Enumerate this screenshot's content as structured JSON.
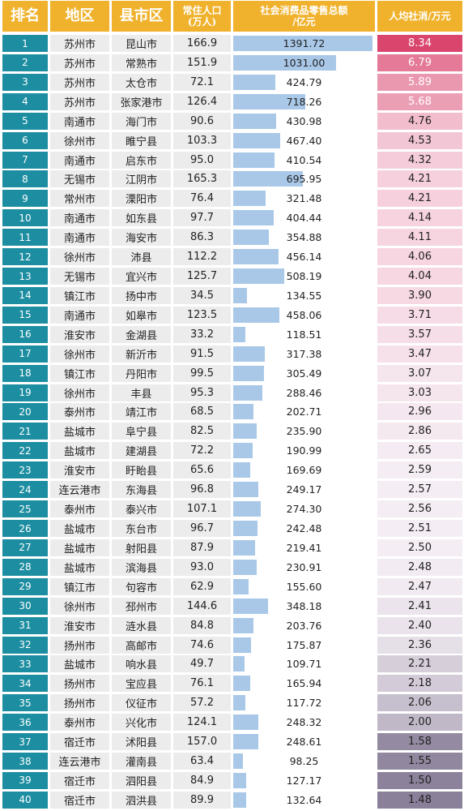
{
  "chart_data": {
    "type": "table",
    "columns": [
      "排名",
      "地区",
      "县市区",
      "常住人口\n(万人)",
      "社会消费品零售总额\n/亿元",
      "人均社消/万元"
    ],
    "rows": [
      {
        "rank": "1",
        "region": "苏州市",
        "county": "昆山市",
        "population": "166.9",
        "sales": "1391.72",
        "per_capita": "8.34"
      },
      {
        "rank": "2",
        "region": "苏州市",
        "county": "常熟市",
        "population": "151.9",
        "sales": "1031.00",
        "per_capita": "6.79"
      },
      {
        "rank": "3",
        "region": "苏州市",
        "county": "太仓市",
        "population": "72.1",
        "sales": "424.79",
        "per_capita": "5.89"
      },
      {
        "rank": "4",
        "region": "苏州市",
        "county": "张家港市",
        "population": "126.4",
        "sales": "718.26",
        "per_capita": "5.68"
      },
      {
        "rank": "5",
        "region": "南通市",
        "county": "海门市",
        "population": "90.6",
        "sales": "430.98",
        "per_capita": "4.76"
      },
      {
        "rank": "6",
        "region": "徐州市",
        "county": "睢宁县",
        "population": "103.3",
        "sales": "467.40",
        "per_capita": "4.53"
      },
      {
        "rank": "7",
        "region": "南通市",
        "county": "启东市",
        "population": "95.0",
        "sales": "410.54",
        "per_capita": "4.32"
      },
      {
        "rank": "8",
        "region": "无锡市",
        "county": "江阴市",
        "population": "165.3",
        "sales": "695.95",
        "per_capita": "4.21"
      },
      {
        "rank": "9",
        "region": "常州市",
        "county": "溧阳市",
        "population": "76.4",
        "sales": "321.48",
        "per_capita": "4.21"
      },
      {
        "rank": "10",
        "region": "南通市",
        "county": "如东县",
        "population": "97.7",
        "sales": "404.44",
        "per_capita": "4.14"
      },
      {
        "rank": "11",
        "region": "南通市",
        "county": "海安市",
        "population": "86.3",
        "sales": "354.88",
        "per_capita": "4.11"
      },
      {
        "rank": "12",
        "region": "徐州市",
        "county": "沛县",
        "population": "112.2",
        "sales": "456.14",
        "per_capita": "4.06"
      },
      {
        "rank": "13",
        "region": "无锡市",
        "county": "宜兴市",
        "population": "125.7",
        "sales": "508.19",
        "per_capita": "4.04"
      },
      {
        "rank": "14",
        "region": "镇江市",
        "county": "扬中市",
        "population": "34.5",
        "sales": "134.55",
        "per_capita": "3.90"
      },
      {
        "rank": "15",
        "region": "南通市",
        "county": "如皋市",
        "population": "123.5",
        "sales": "458.06",
        "per_capita": "3.71"
      },
      {
        "rank": "16",
        "region": "淮安市",
        "county": "金湖县",
        "population": "33.2",
        "sales": "118.51",
        "per_capita": "3.57"
      },
      {
        "rank": "17",
        "region": "徐州市",
        "county": "新沂市",
        "population": "91.5",
        "sales": "317.38",
        "per_capita": "3.47"
      },
      {
        "rank": "18",
        "region": "镇江市",
        "county": "丹阳市",
        "population": "99.5",
        "sales": "305.49",
        "per_capita": "3.07"
      },
      {
        "rank": "19",
        "region": "徐州市",
        "county": "丰县",
        "population": "95.3",
        "sales": "288.46",
        "per_capita": "3.03"
      },
      {
        "rank": "20",
        "region": "泰州市",
        "county": "靖江市",
        "population": "68.5",
        "sales": "202.71",
        "per_capita": "2.96"
      },
      {
        "rank": "21",
        "region": "盐城市",
        "county": "阜宁县",
        "population": "82.5",
        "sales": "235.90",
        "per_capita": "2.86"
      },
      {
        "rank": "22",
        "region": "盐城市",
        "county": "建湖县",
        "population": "72.2",
        "sales": "190.99",
        "per_capita": "2.65"
      },
      {
        "rank": "23",
        "region": "淮安市",
        "county": "盱眙县",
        "population": "65.6",
        "sales": "169.69",
        "per_capita": "2.59"
      },
      {
        "rank": "24",
        "region": "连云港市",
        "county": "东海县",
        "population": "96.8",
        "sales": "249.17",
        "per_capita": "2.57"
      },
      {
        "rank": "25",
        "region": "泰州市",
        "county": "泰兴市",
        "population": "107.1",
        "sales": "274.30",
        "per_capita": "2.56"
      },
      {
        "rank": "26",
        "region": "盐城市",
        "county": "东台市",
        "population": "96.7",
        "sales": "242.48",
        "per_capita": "2.51"
      },
      {
        "rank": "27",
        "region": "盐城市",
        "county": "射阳县",
        "population": "87.9",
        "sales": "219.41",
        "per_capita": "2.50"
      },
      {
        "rank": "28",
        "region": "盐城市",
        "county": "滨海县",
        "population": "93.0",
        "sales": "230.91",
        "per_capita": "2.48"
      },
      {
        "rank": "29",
        "region": "镇江市",
        "county": "句容市",
        "population": "62.9",
        "sales": "155.60",
        "per_capita": "2.47"
      },
      {
        "rank": "30",
        "region": "徐州市",
        "county": "邳州市",
        "population": "144.6",
        "sales": "348.18",
        "per_capita": "2.41"
      },
      {
        "rank": "31",
        "region": "淮安市",
        "county": "涟水县",
        "population": "84.8",
        "sales": "203.76",
        "per_capita": "2.40"
      },
      {
        "rank": "32",
        "region": "扬州市",
        "county": "高邮市",
        "population": "74.6",
        "sales": "175.87",
        "per_capita": "2.36"
      },
      {
        "rank": "33",
        "region": "盐城市",
        "county": "响水县",
        "population": "49.7",
        "sales": "109.71",
        "per_capita": "2.21"
      },
      {
        "rank": "34",
        "region": "扬州市",
        "county": "宝应县",
        "population": "76.1",
        "sales": "165.94",
        "per_capita": "2.18"
      },
      {
        "rank": "35",
        "region": "扬州市",
        "county": "仪征市",
        "population": "57.2",
        "sales": "117.72",
        "per_capita": "2.06"
      },
      {
        "rank": "36",
        "region": "泰州市",
        "county": "兴化市",
        "population": "124.1",
        "sales": "248.32",
        "per_capita": "2.00"
      },
      {
        "rank": "37",
        "region": "宿迁市",
        "county": "沭阳县",
        "population": "157.0",
        "sales": "248.61",
        "per_capita": "1.58"
      },
      {
        "rank": "38",
        "region": "连云港市",
        "county": "灌南县",
        "population": "63.4",
        "sales": "98.25",
        "per_capita": "1.55"
      },
      {
        "rank": "39",
        "region": "宿迁市",
        "county": "泗阳县",
        "population": "84.9",
        "sales": "127.17",
        "per_capita": "1.50"
      },
      {
        "rank": "40",
        "region": "宿迁市",
        "county": "泗洪县",
        "population": "89.9",
        "sales": "132.64",
        "per_capita": "1.48"
      }
    ]
  },
  "colors": {
    "header_bg": "#f0b22c",
    "rank_bg": "#1d8ea1",
    "bar": "#a9c8e8",
    "per_capita_high": "#d9456d",
    "per_capita_mid": "#f7d8e3",
    "per_capita_low": "#8a8099"
  }
}
